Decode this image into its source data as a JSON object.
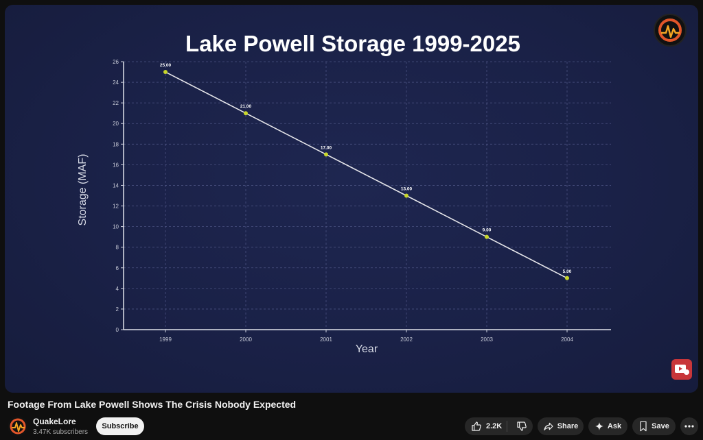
{
  "video": {
    "title": "Footage From Lake Powell Shows The Crisis Nobody Expected"
  },
  "channel": {
    "name": "QuakeLore",
    "subscribers": "3.47K subscribers",
    "subscribe_label": "Subscribe"
  },
  "actions": {
    "like_count": "2.2K",
    "share_label": "Share",
    "ask_label": "Ask",
    "save_label": "Save"
  },
  "colors": {
    "accent_point": "#c8d62a",
    "line": "#e6e6ea",
    "grid": "#4a5180",
    "subscribe_bg": "#f1f1f1"
  },
  "icons": [
    "like-icon",
    "dislike-icon",
    "share-icon",
    "sparkle-icon",
    "bookmark-icon",
    "more-icon",
    "channel-logo-icon"
  ],
  "chart_data": {
    "type": "line",
    "title": "Lake Powell Storage 1999-2025",
    "xlabel": "Year",
    "ylabel": "Storage (MAF)",
    "categories": [
      "1999",
      "2000",
      "2001",
      "2002",
      "2003",
      "2004"
    ],
    "series": [
      {
        "values": [
          25,
          21,
          17,
          13,
          9,
          5
        ]
      }
    ],
    "data_labels": [
      "25.00",
      "21.00",
      "17.00",
      "13.00",
      "9.00",
      "5.00"
    ],
    "yticks": [
      "0",
      "2",
      "4",
      "6",
      "8",
      "10",
      "12",
      "14",
      "16",
      "18",
      "20",
      "22",
      "24",
      "26"
    ],
    "ylim": [
      0,
      26
    ],
    "grid": true,
    "legend": "none"
  }
}
